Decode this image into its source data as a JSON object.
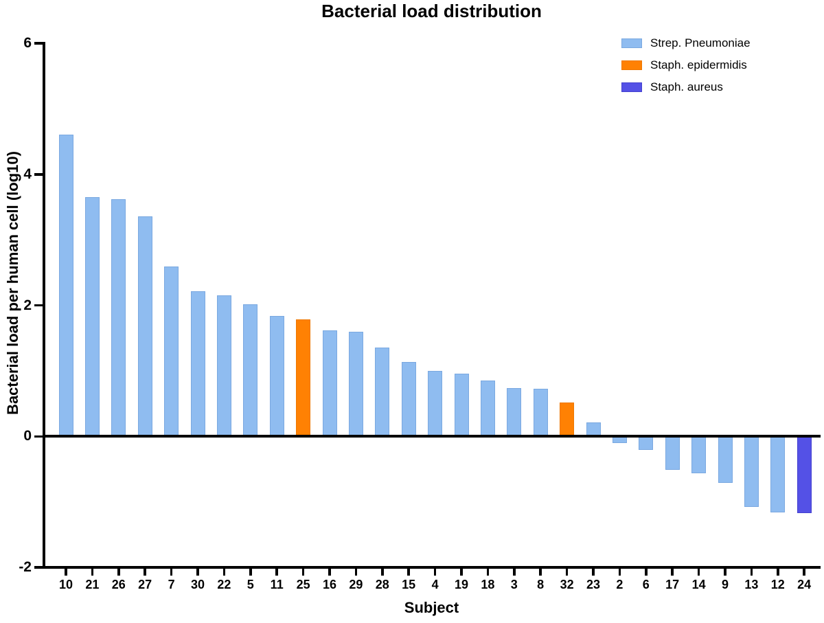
{
  "chart_data": {
    "type": "bar",
    "title": "Bacterial load distribution",
    "xlabel": "Subject",
    "ylabel": "Bacterial load per human cell (log10)",
    "ylim": [
      -2,
      6
    ],
    "yticks": [
      6,
      4,
      2,
      0,
      -2
    ],
    "ytick_labels": [
      "6",
      "4",
      "2",
      "0",
      "-2"
    ],
    "grid": false,
    "legend_position": "top-right",
    "categories": [
      "10",
      "21",
      "26",
      "27",
      "7",
      "30",
      "22",
      "5",
      "11",
      "25",
      "16",
      "29",
      "28",
      "15",
      "4",
      "19",
      "18",
      "3",
      "8",
      "32",
      "23",
      "2",
      "6",
      "17",
      "14",
      "9",
      "13",
      "12",
      "24"
    ],
    "values": [
      4.61,
      3.65,
      3.62,
      3.36,
      2.59,
      2.22,
      2.15,
      2.02,
      1.84,
      1.78,
      1.62,
      1.6,
      1.36,
      1.14,
      1.0,
      0.96,
      0.85,
      0.74,
      0.73,
      0.52,
      0.21,
      -0.1,
      -0.21,
      -0.51,
      -0.56,
      -0.71,
      -1.08,
      -1.16,
      -1.17
    ],
    "bar_series": [
      0,
      0,
      0,
      0,
      0,
      0,
      0,
      0,
      0,
      1,
      0,
      0,
      0,
      0,
      0,
      0,
      0,
      0,
      0,
      1,
      0,
      0,
      0,
      0,
      0,
      0,
      0,
      0,
      2
    ],
    "series": [
      {
        "name": "Strep. Pneumoniae",
        "color": "#8FBCF0",
        "border": "#7AA8E0"
      },
      {
        "name": "Staph. epidermidis",
        "color": "#FF8103",
        "border": "#EE7700"
      },
      {
        "name": "Staph. aureus",
        "color": "#5451E6",
        "border": "#4340CF"
      }
    ],
    "colors": {
      "axis": "#000000",
      "text": "#000000",
      "background": "#FFFFFF"
    }
  }
}
